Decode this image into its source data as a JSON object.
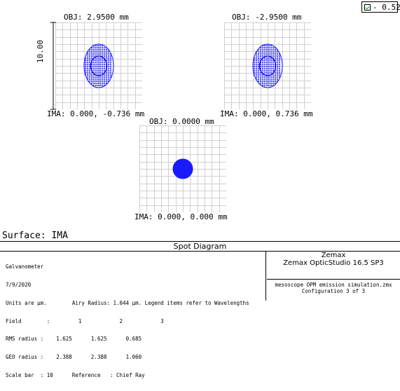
{
  "wavelength_selector": {
    "label": "0.52",
    "checked": true,
    "check_color": "#00aa00"
  },
  "plot": {
    "spot_color": "#1a1aff",
    "grid_color": "#d0d0d0",
    "scale_label": "10.00",
    "panels": [
      {
        "obj": "OBJ: 2.9500 mm",
        "ima": "IMA: 0.000, -0.736 mm"
      },
      {
        "obj": "OBJ: -2.9500 mm",
        "ima": "IMA: 0.000, 0.736 mm"
      },
      {
        "obj": "OBJ: 0.0000 mm",
        "ima": "IMA: 0.000, 0.000 mm"
      }
    ]
  },
  "surface": "Surface: IMA",
  "footer": {
    "title": "Spot Diagram",
    "lines": [
      "Galvanometer",
      "7/9/2020",
      "Units are µm.        Airy Radius: 1.044 µm. Legend items refer to Wavelengths",
      "Field        :         1            2            3",
      "RMS radius :    1.625      1.625      0.685",
      "GEO radius :    2.388      2.388      1.060",
      "Scale bar  : 10      Reference   : Chief Ray"
    ],
    "company": "Zemax",
    "product": "Zemax OpticStudio 16.5 SP3",
    "file": "mesoscope OPM emission simulation.zmx",
    "configuration": "Configuration 3 of 3"
  }
}
